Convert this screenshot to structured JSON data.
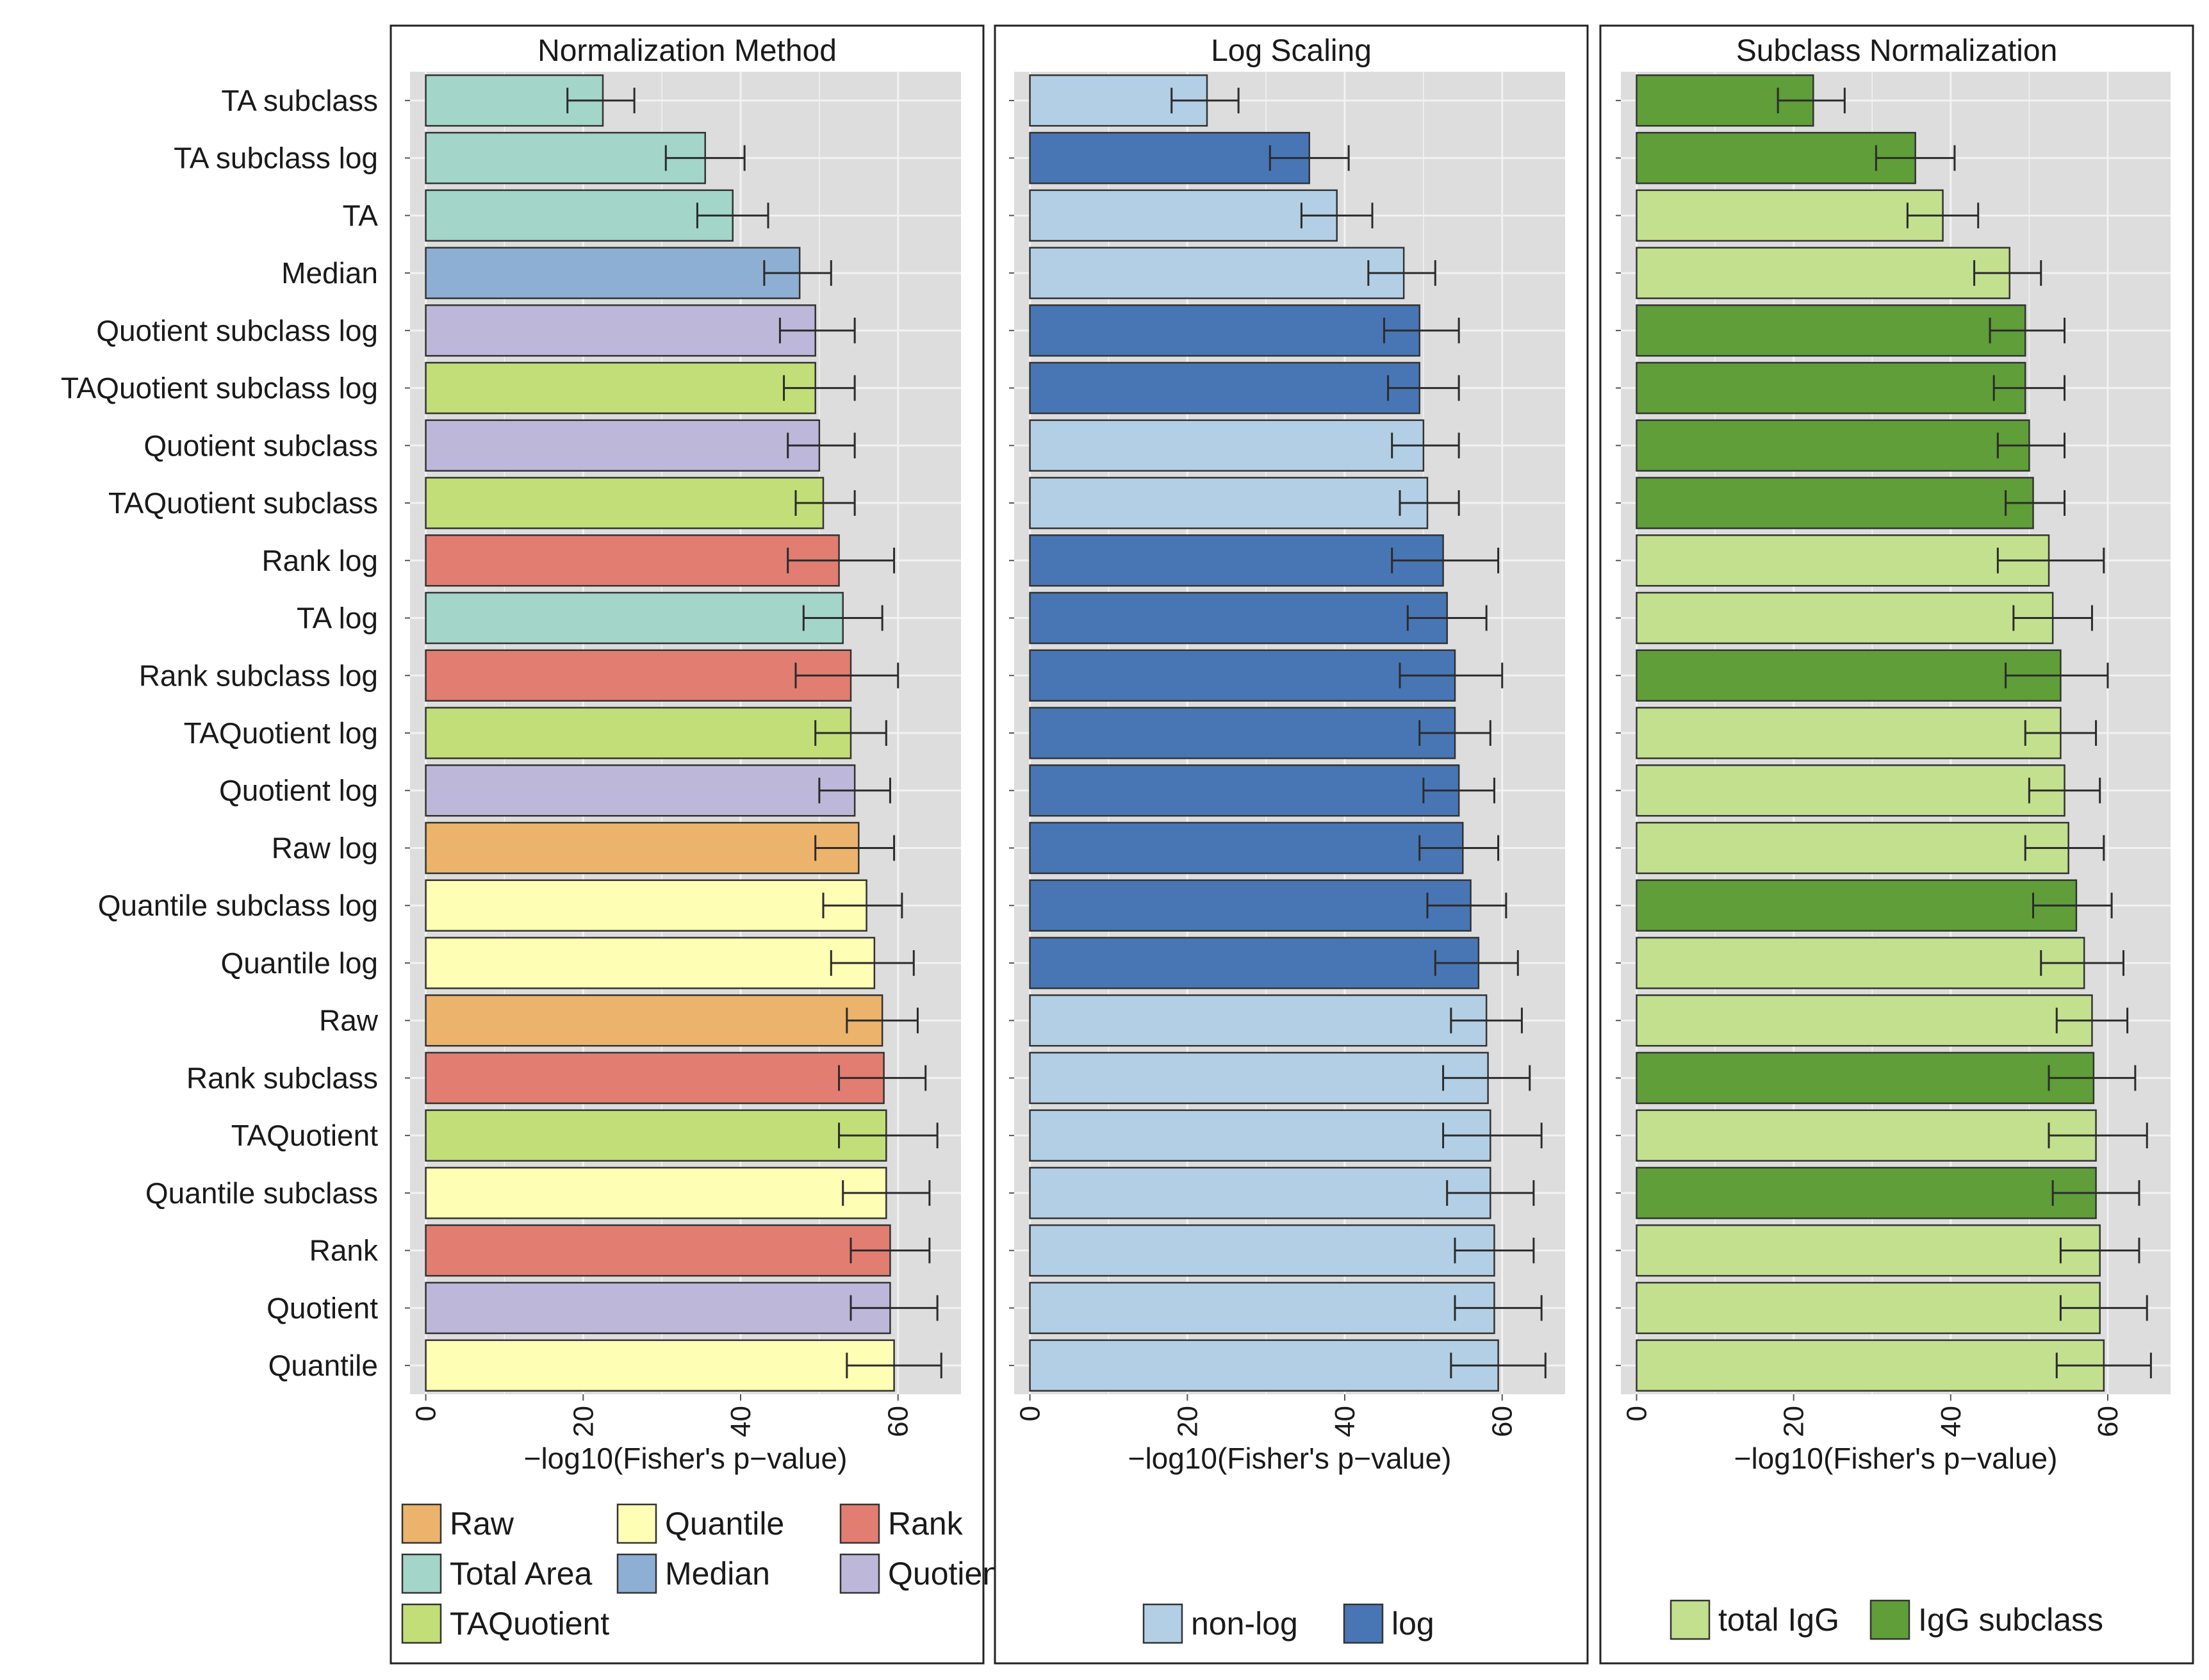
{
  "chart_data": {
    "type": "bar",
    "orientation": "horizontal",
    "categories": [
      "TA subclass",
      "TA subclass log",
      "TA",
      "Median",
      "Quotient subclass log",
      "TAQuotient subclass log",
      "Quotient subclass",
      "TAQuotient subclass",
      "Rank log",
      "TA log",
      "Rank subclass log",
      "TAQuotient log",
      "Quotient log",
      "Raw log",
      "Quantile subclass log",
      "Quantile log",
      "Raw",
      "Rank subclass",
      "TAQuotient",
      "Quantile subclass",
      "Rank",
      "Quotient",
      "Quantile"
    ],
    "values": [
      22.5,
      35.5,
      39,
      47.5,
      49.5,
      49.5,
      50,
      50.5,
      52.5,
      53,
      54,
      54,
      54.5,
      55,
      56,
      57,
      58,
      58.2,
      58.5,
      58.5,
      59,
      59,
      59.5
    ],
    "error_low": [
      18,
      30.5,
      34.5,
      43,
      45,
      45.5,
      46,
      47,
      46,
      48,
      47,
      49.5,
      50,
      49.5,
      50.5,
      51.5,
      53.5,
      52.5,
      52.5,
      53,
      54,
      54,
      53.5
    ],
    "error_high": [
      26.5,
      40.5,
      43.5,
      51.5,
      54.5,
      54.5,
      54.5,
      54.5,
      59.5,
      58,
      60,
      58.5,
      59,
      59.5,
      60.5,
      62,
      62.5,
      63.5,
      65,
      64,
      64,
      65,
      65.5
    ],
    "xlabel": "−log10(Fisher's p−value)",
    "xlim": [
      -2,
      68
    ],
    "xticks": [
      0,
      20,
      40,
      60
    ],
    "grid": true,
    "panels": [
      {
        "title": "Normalization Method",
        "group_by_row": [
          "Total Area",
          "Total Area",
          "Total Area",
          "Median",
          "Quotient",
          "TAQuotient",
          "Quotient",
          "TAQuotient",
          "Rank",
          "Total Area",
          "Rank",
          "TAQuotient",
          "Quotient",
          "Raw",
          "Quantile",
          "Quantile",
          "Raw",
          "Rank",
          "TAQuotient",
          "Quantile",
          "Rank",
          "Quotient",
          "Quantile"
        ],
        "legend": [
          {
            "name": "Raw",
            "color": "#EBB36C"
          },
          {
            "name": "Quantile",
            "color": "#FEFEB5"
          },
          {
            "name": "Rank",
            "color": "#E27D72"
          },
          {
            "name": "Total Area",
            "color": "#A3D5C8"
          },
          {
            "name": "Median",
            "color": "#8DAFD3"
          },
          {
            "name": "Quotient",
            "color": "#BDB8DA"
          },
          {
            "name": "TAQuotient",
            "color": "#C2DE78"
          }
        ]
      },
      {
        "title": "Log Scaling",
        "group_by_row": [
          "non-log",
          "log",
          "non-log",
          "non-log",
          "log",
          "log",
          "non-log",
          "non-log",
          "log",
          "log",
          "log",
          "log",
          "log",
          "log",
          "log",
          "log",
          "non-log",
          "non-log",
          "non-log",
          "non-log",
          "non-log",
          "non-log",
          "non-log"
        ],
        "legend": [
          {
            "name": "non-log",
            "color": "#B3CFE5"
          },
          {
            "name": "log",
            "color": "#4876B4"
          }
        ]
      },
      {
        "title": "Subclass Normalization",
        "group_by_row": [
          "IgG subclass",
          "IgG subclass",
          "total IgG",
          "total IgG",
          "IgG subclass",
          "IgG subclass",
          "IgG subclass",
          "IgG subclass",
          "total IgG",
          "total IgG",
          "IgG subclass",
          "total IgG",
          "total IgG",
          "total IgG",
          "IgG subclass",
          "total IgG",
          "total IgG",
          "IgG subclass",
          "total IgG",
          "IgG subclass",
          "total IgG",
          "total IgG",
          "total IgG"
        ],
        "legend": [
          {
            "name": "total IgG",
            "color": "#C2E08E"
          },
          {
            "name": "IgG subclass",
            "color": "#5F9E38"
          }
        ]
      }
    ]
  },
  "colors": {
    "panel_bg": "#DDDDDD",
    "grid": "#F2F2F2",
    "bar_outline": "#333333",
    "errorbar": "#2b2b2b",
    "frame": "#222222"
  }
}
